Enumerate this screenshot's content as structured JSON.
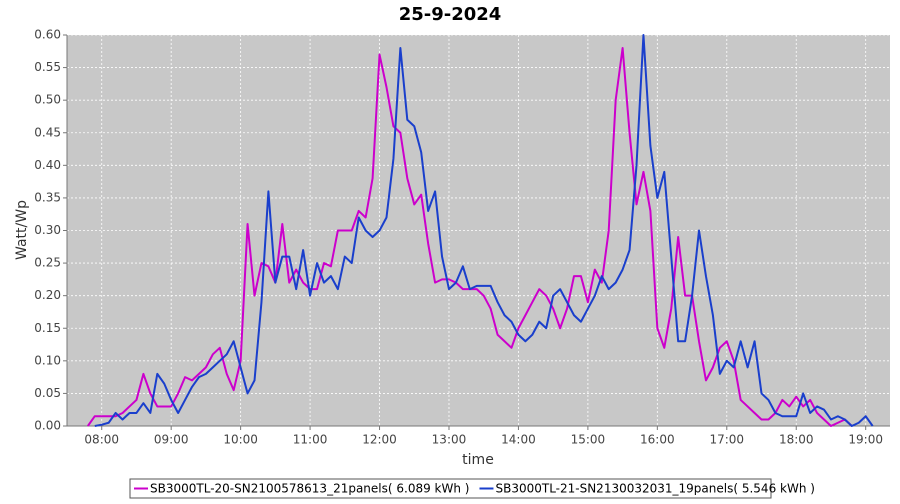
{
  "chart_data": {
    "type": "line",
    "title": "25-9-2024",
    "x_label": "time",
    "y_label": "Watt/Wp",
    "x": [
      7.7,
      7.8,
      7.9,
      8.0,
      8.1,
      8.2,
      8.3,
      8.4,
      8.5,
      8.6,
      8.7,
      8.8,
      8.9,
      9.0,
      9.1,
      9.2,
      9.3,
      9.4,
      9.5,
      9.6,
      9.7,
      9.8,
      9.9,
      10.0,
      10.1,
      10.2,
      10.3,
      10.4,
      10.5,
      10.6,
      10.7,
      10.8,
      10.9,
      11.0,
      11.1,
      11.2,
      11.3,
      11.4,
      11.5,
      11.6,
      11.7,
      11.8,
      11.9,
      12.0,
      12.1,
      12.2,
      12.3,
      12.4,
      12.5,
      12.6,
      12.7,
      12.8,
      12.9,
      13.0,
      13.1,
      13.2,
      13.3,
      13.4,
      13.5,
      13.6,
      13.7,
      13.8,
      13.9,
      14.0,
      14.1,
      14.2,
      14.3,
      14.4,
      14.5,
      14.6,
      14.7,
      14.8,
      14.9,
      15.0,
      15.1,
      15.2,
      15.3,
      15.4,
      15.5,
      15.6,
      15.7,
      15.8,
      15.9,
      16.0,
      16.1,
      16.2,
      16.3,
      16.4,
      16.5,
      16.6,
      16.7,
      16.8,
      16.9,
      17.0,
      17.1,
      17.2,
      17.3,
      17.4,
      17.5,
      17.6,
      17.7,
      17.8,
      17.9,
      18.0,
      18.1,
      18.2,
      18.3,
      18.4,
      18.5,
      18.6,
      18.7,
      18.8,
      18.9,
      19.0,
      19.1
    ],
    "series": [
      {
        "name": "SB3000TL-20-SN2100578613_21panels( 6.089 kWh )",
        "color": "#cc00cc",
        "values": [
          null,
          0,
          0.015,
          0.015,
          0.015,
          0.015,
          0.02,
          0.03,
          0.04,
          0.08,
          0.05,
          0.03,
          0.03,
          0.03,
          0.05,
          0.075,
          0.07,
          0.08,
          0.09,
          0.11,
          0.12,
          0.08,
          0.055,
          0.1,
          0.31,
          0.2,
          0.25,
          0.245,
          0.22,
          0.31,
          0.22,
          0.24,
          0.22,
          0.21,
          0.21,
          0.25,
          0.245,
          0.3,
          0.3,
          0.3,
          0.33,
          0.32,
          0.38,
          0.57,
          0.52,
          0.46,
          0.45,
          0.38,
          0.34,
          0.355,
          0.28,
          0.22,
          0.225,
          0.225,
          0.22,
          0.21,
          0.21,
          0.21,
          0.2,
          0.18,
          0.14,
          0.13,
          0.12,
          0.15,
          0.17,
          0.19,
          0.21,
          0.2,
          0.18,
          0.15,
          0.18,
          0.23,
          0.23,
          0.19,
          0.24,
          0.22,
          0.3,
          0.5,
          0.58,
          0.45,
          0.34,
          0.39,
          0.33,
          0.15,
          0.12,
          0.18,
          0.29,
          0.2,
          0.2,
          0.13,
          0.07,
          0.09,
          0.12,
          0.13,
          0.1,
          0.04,
          0.03,
          0.02,
          0.01,
          0.01,
          0.02,
          0.04,
          0.03,
          0.045,
          0.03,
          0.04,
          0.02,
          0.01,
          0,
          0.005,
          0.01,
          0,
          null,
          null,
          null
        ]
      },
      {
        "name": "SB3000TL-21-SN2130032031_19panels( 5.546 kWh )",
        "color": "#1a3fcc",
        "values": [
          null,
          null,
          0,
          0.002,
          0.005,
          0.02,
          0.01,
          0.02,
          0.02,
          0.035,
          0.02,
          0.08,
          0.065,
          0.04,
          0.02,
          0.04,
          0.06,
          0.075,
          0.08,
          0.09,
          0.1,
          0.11,
          0.13,
          0.09,
          0.05,
          0.07,
          0.19,
          0.36,
          0.22,
          0.26,
          0.26,
          0.21,
          0.27,
          0.2,
          0.25,
          0.22,
          0.23,
          0.21,
          0.26,
          0.25,
          0.32,
          0.3,
          0.29,
          0.3,
          0.32,
          0.41,
          0.58,
          0.47,
          0.46,
          0.42,
          0.33,
          0.36,
          0.26,
          0.21,
          0.22,
          0.245,
          0.21,
          0.215,
          0.215,
          0.215,
          0.19,
          0.17,
          0.16,
          0.14,
          0.13,
          0.14,
          0.16,
          0.15,
          0.2,
          0.21,
          0.19,
          0.17,
          0.16,
          0.18,
          0.2,
          0.23,
          0.21,
          0.22,
          0.24,
          0.27,
          0.4,
          0.6,
          0.43,
          0.35,
          0.39,
          0.26,
          0.13,
          0.13,
          0.2,
          0.3,
          0.23,
          0.17,
          0.08,
          0.1,
          0.09,
          0.13,
          0.09,
          0.13,
          0.05,
          0.04,
          0.02,
          0.015,
          0.015,
          0.015,
          0.05,
          0.02,
          0.03,
          0.025,
          0.01,
          0.015,
          0.01,
          0,
          0.005,
          0.015,
          0
        ]
      }
    ],
    "xlim": [
      7.5,
      19.35
    ],
    "xticks": [
      {
        "value": 8,
        "label": "08:00"
      },
      {
        "value": 9,
        "label": "09:00"
      },
      {
        "value": 10,
        "label": "10:00"
      },
      {
        "value": 11,
        "label": "11:00"
      },
      {
        "value": 12,
        "label": "12:00"
      },
      {
        "value": 13,
        "label": "13:00"
      },
      {
        "value": 14,
        "label": "14:00"
      },
      {
        "value": 15,
        "label": "15:00"
      },
      {
        "value": 16,
        "label": "16:00"
      },
      {
        "value": 17,
        "label": "17:00"
      },
      {
        "value": 18,
        "label": "18:00"
      },
      {
        "value": 19,
        "label": "19:00"
      }
    ],
    "ylim": [
      0,
      0.6
    ],
    "yticks": [
      {
        "value": 0,
        "label": "0.00"
      },
      0.05,
      {
        "value": 0.1,
        "label": "0.10"
      },
      0.15,
      {
        "value": 0.2,
        "label": "0.20"
      },
      0.25,
      {
        "value": 0.3,
        "label": "0.30"
      },
      0.35,
      {
        "value": 0.4,
        "label": "0.40"
      },
      0.45,
      {
        "value": 0.5,
        "label": "0.50"
      },
      0.55,
      {
        "value": 0.6,
        "label": "0.60"
      }
    ],
    "grid": true
  }
}
